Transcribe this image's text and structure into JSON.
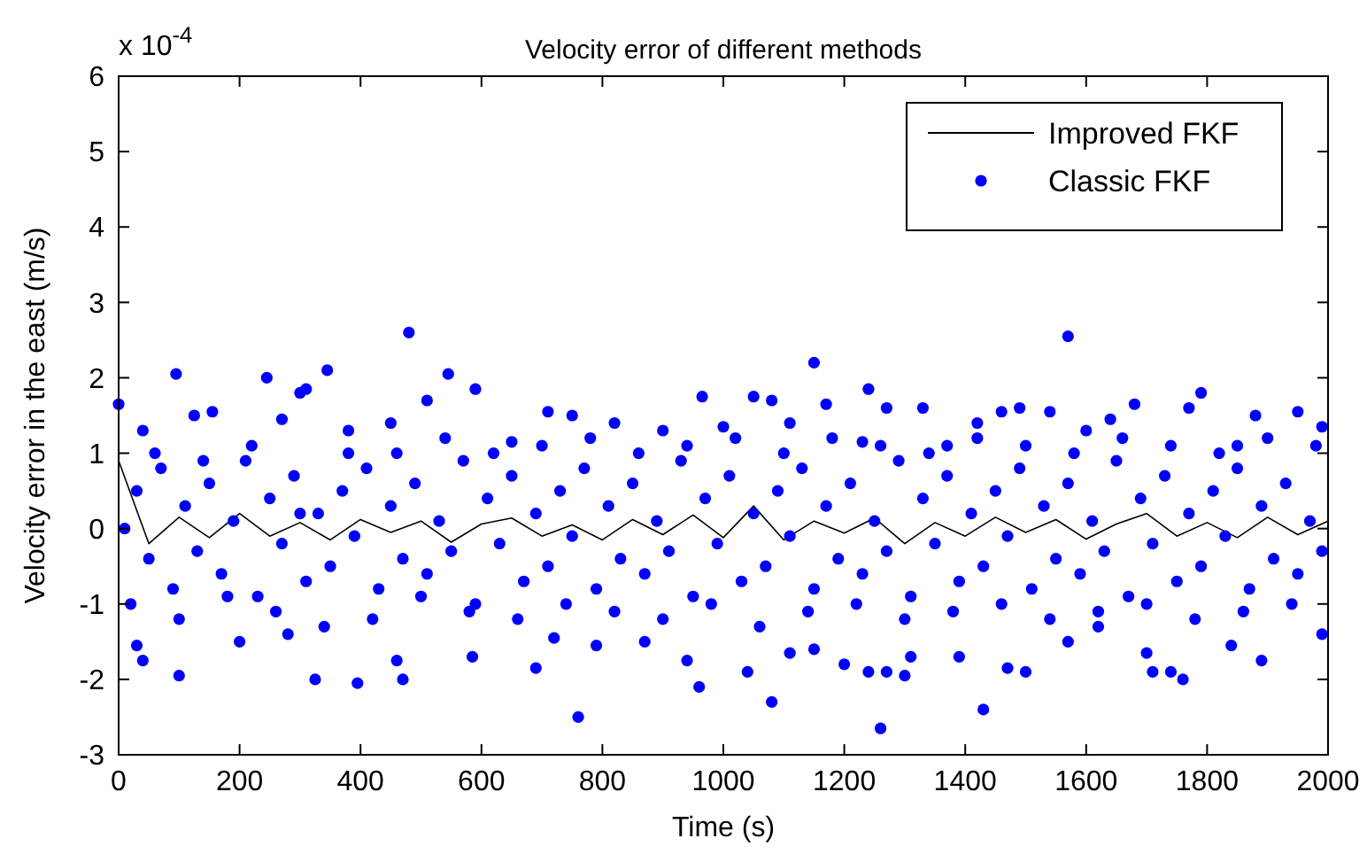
{
  "chart_data": {
    "type": "scatter",
    "title": "Velocity error of different methods",
    "xlabel": "Time (s)",
    "ylabel": "Velocity error in the east (m/s)",
    "annotations": [
      "x 10$^{-4}$"
    ],
    "xlim": [
      0,
      2000
    ],
    "xticks": [
      0,
      200,
      400,
      600,
      800,
      1000,
      1200,
      1400,
      1600,
      1800,
      2000
    ],
    "ylim": [
      -3,
      6
    ],
    "yticks": [
      -3,
      -2,
      -1,
      0,
      1,
      2,
      3,
      4,
      5,
      6
    ],
    "grid": false,
    "legend": "top right",
    "series": [
      {
        "name": "Improved FKF",
        "type": "line",
        "color": "#000000",
        "marker": "none",
        "line_style": "solid",
        "x": [
          0,
          50,
          100,
          150,
          200,
          250,
          300,
          350,
          400,
          450,
          500,
          550,
          600,
          650,
          700,
          750,
          800,
          850,
          900,
          950,
          1000,
          1050,
          1100,
          1150,
          1200,
          1250,
          1300,
          1350,
          1400,
          1450,
          1500,
          1550,
          1600,
          1650,
          1700,
          1750,
          1800,
          1850,
          1900,
          1950,
          2000
        ],
        "values": [
          0.9,
          -0.2,
          0.15,
          -0.12,
          0.2,
          -0.1,
          0.08,
          -0.15,
          0.12,
          -0.05,
          0.1,
          -0.18,
          0.06,
          0.14,
          -0.1,
          0.05,
          -0.15,
          0.12,
          -0.08,
          0.18,
          -0.12,
          0.3,
          -0.15,
          0.1,
          -0.06,
          0.14,
          -0.2,
          0.08,
          -0.1,
          0.15,
          -0.05,
          0.12,
          -0.14,
          0.06,
          0.2,
          -0.1,
          0.08,
          -0.12,
          0.15,
          -0.08,
          0.1
        ]
      },
      {
        "name": "Classic FKF",
        "color": "#0000ff",
        "marker": "circle",
        "x": [
          480,
          1570,
          1150,
          95,
          345,
          545,
          245,
          590,
          300,
          310,
          1240,
          1790,
          965,
          1050,
          1270,
          1080,
          1170,
          1680,
          1880,
          1540,
          1490,
          1330,
          1640,
          1990,
          0,
          155,
          125,
          750,
          510,
          270,
          450,
          710,
          1000,
          1420,
          1950,
          1770,
          1600,
          1230,
          1370,
          1850,
          900,
          40,
          380,
          650,
          820,
          1110,
          1460,
          760,
          1260,
          1430,
          1080,
          395,
          325,
          100,
          470,
          690,
          960,
          1040,
          1240,
          1270,
          1300,
          1470,
          1500,
          1710,
          1740,
          1760,
          1890,
          1990,
          40,
          460,
          1200,
          1840,
          1570,
          1390,
          1700,
          200,
          585,
          720,
          790,
          870,
          940,
          1110,
          1150,
          1620,
          1310,
          280,
          30,
          10,
          30,
          50,
          70,
          90,
          110,
          130,
          150,
          170,
          190,
          210,
          230,
          250,
          270,
          290,
          310,
          330,
          350,
          370,
          390,
          410,
          430,
          450,
          470,
          490,
          510,
          530,
          550,
          570,
          590,
          610,
          630,
          650,
          670,
          690,
          710,
          730,
          750,
          770,
          790,
          810,
          830,
          850,
          870,
          890,
          910,
          930,
          950,
          970,
          990,
          1010,
          1030,
          1050,
          1070,
          1090,
          1110,
          1130,
          1150,
          1170,
          1190,
          1210,
          1230,
          1250,
          1270,
          1290,
          1310,
          1330,
          1350,
          1370,
          1390,
          1410,
          1430,
          1450,
          1470,
          1490,
          1510,
          1530,
          1550,
          1570,
          1590,
          1610,
          1630,
          1650,
          1670,
          1690,
          1710,
          1730,
          1750,
          1770,
          1790,
          1810,
          1830,
          1850,
          1870,
          1890,
          1910,
          1930,
          1950,
          1970,
          1990,
          20,
          60,
          100,
          140,
          180,
          220,
          260,
          300,
          340,
          380,
          420,
          460,
          500,
          540,
          580,
          620,
          660,
          700,
          740,
          780,
          820,
          860,
          900,
          940,
          980,
          1020,
          1060,
          1100,
          1140,
          1180,
          1220,
          1260,
          1300,
          1340,
          1380,
          1420,
          1460,
          1500,
          1540,
          1580,
          1620,
          1660,
          1700,
          1740,
          1780,
          1820,
          1860,
          1900,
          1940,
          1980
        ],
        "values": [
          2.6,
          2.55,
          2.2,
          2.05,
          2.1,
          2.05,
          2.0,
          1.85,
          1.8,
          1.85,
          1.85,
          1.8,
          1.75,
          1.75,
          1.6,
          1.7,
          1.65,
          1.65,
          1.5,
          1.55,
          1.6,
          1.6,
          1.45,
          1.35,
          1.65,
          1.55,
          1.5,
          1.5,
          1.7,
          1.45,
          1.4,
          1.55,
          1.35,
          1.4,
          1.55,
          1.6,
          1.3,
          1.15,
          1.1,
          1.1,
          1.3,
          1.3,
          1.3,
          1.15,
          1.4,
          1.4,
          1.55,
          -2.5,
          -2.65,
          -2.4,
          -2.3,
          -2.05,
          -2.0,
          -1.95,
          -2.0,
          -1.85,
          -2.1,
          -1.9,
          -1.9,
          -1.9,
          -1.95,
          -1.85,
          -1.9,
          -1.9,
          -1.9,
          -2.0,
          -1.75,
          -1.4,
          -1.75,
          -1.75,
          -1.8,
          -1.55,
          -1.5,
          -1.7,
          -1.65,
          -1.5,
          -1.7,
          -1.45,
          -1.55,
          -1.5,
          -1.75,
          -1.65,
          -1.6,
          -1.3,
          -1.7,
          -1.4,
          -1.55,
          0,
          0.5,
          -0.4,
          0.8,
          -0.8,
          0.3,
          -0.3,
          0.6,
          -0.6,
          0.1,
          0.9,
          -0.9,
          0.4,
          -0.2,
          0.7,
          -0.7,
          0.2,
          -0.5,
          0.5,
          -0.1,
          0.8,
          -0.8,
          0.3,
          -0.4,
          0.6,
          -0.6,
          0.1,
          -0.3,
          0.9,
          -1.0,
          0.4,
          -0.2,
          0.7,
          -0.7,
          0.2,
          -0.5,
          0.5,
          -0.1,
          0.8,
          -0.8,
          0.3,
          -0.4,
          0.6,
          -0.6,
          0.1,
          -0.3,
          0.9,
          -0.9,
          0.4,
          -0.2,
          0.7,
          -0.7,
          0.2,
          -0.5,
          0.5,
          -0.1,
          0.8,
          -0.8,
          0.3,
          -0.4,
          0.6,
          -0.6,
          0.1,
          -0.3,
          0.9,
          -0.9,
          0.4,
          -0.2,
          0.7,
          -0.7,
          0.2,
          -0.5,
          0.5,
          -0.1,
          0.8,
          -0.8,
          0.3,
          -0.4,
          0.6,
          -0.6,
          0.1,
          -0.3,
          0.9,
          -0.9,
          0.4,
          -0.2,
          0.7,
          -0.7,
          0.2,
          -0.5,
          0.5,
          -0.1,
          0.8,
          -0.8,
          0.3,
          -0.4,
          0.6,
          -0.6,
          0.1,
          -0.3,
          -1.0,
          1.0,
          -1.2,
          0.9,
          -0.9,
          1.1,
          -1.1,
          0.2,
          -1.3,
          1.0,
          -1.2,
          1.0,
          -0.9,
          1.2,
          -1.1,
          1.0,
          -1.2,
          1.1,
          -1.0,
          1.2,
          -1.1,
          1.0,
          -1.2,
          1.1,
          -1.0,
          1.2,
          -1.3,
          1.0,
          -1.1,
          1.2,
          -1.0,
          1.1,
          -1.2,
          1.0,
          -1.1,
          1.2,
          -1.0,
          1.1,
          -1.2,
          1.0,
          -1.1,
          1.2,
          -1.0,
          1.1,
          -1.2,
          1.0,
          -1.1,
          1.2,
          -1.0,
          1.1
        ]
      }
    ]
  }
}
